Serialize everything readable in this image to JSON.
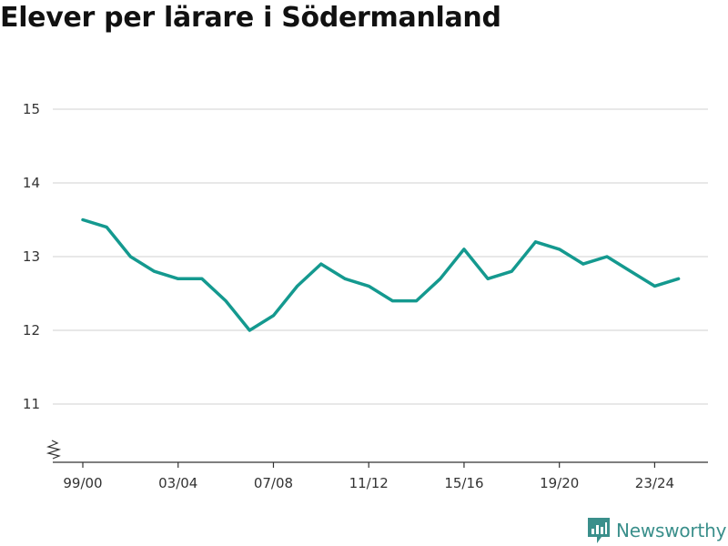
{
  "title": "Elever per lärare i Södermanland",
  "brand": {
    "name": "Newsworthy",
    "icon": "newsworthy-logo-icon",
    "color": "#3a8f8b"
  },
  "chart_data": {
    "type": "line",
    "title": "Elever per lärare i Södermanland",
    "xlabel": "",
    "ylabel": "",
    "x": [
      "99/00",
      "00/01",
      "01/02",
      "02/03",
      "03/04",
      "04/05",
      "05/06",
      "06/07",
      "07/08",
      "08/09",
      "09/10",
      "10/11",
      "11/12",
      "12/13",
      "13/14",
      "14/15",
      "15/16",
      "16/17",
      "17/18",
      "18/19",
      "19/20",
      "20/21",
      "21/22",
      "22/23",
      "23/24",
      "24/25"
    ],
    "x_tick_labels": [
      "99/00",
      "03/04",
      "07/08",
      "11/12",
      "15/16",
      "19/20",
      "23/24"
    ],
    "series": [
      {
        "color": "#14998f",
        "values": [
          13.5,
          13.4,
          13.0,
          12.8,
          12.7,
          12.7,
          12.4,
          12.0,
          12.2,
          12.6,
          12.9,
          12.7,
          12.6,
          12.4,
          12.4,
          12.7,
          13.1,
          12.7,
          12.8,
          13.2,
          13.1,
          12.9,
          13.0,
          12.8,
          12.6,
          12.7
        ]
      }
    ],
    "ylim": [
      10.25,
      15
    ],
    "y_ticks": [
      11,
      12,
      13,
      14,
      15
    ],
    "y_axis_break": true,
    "grid": true,
    "legend": "none"
  }
}
